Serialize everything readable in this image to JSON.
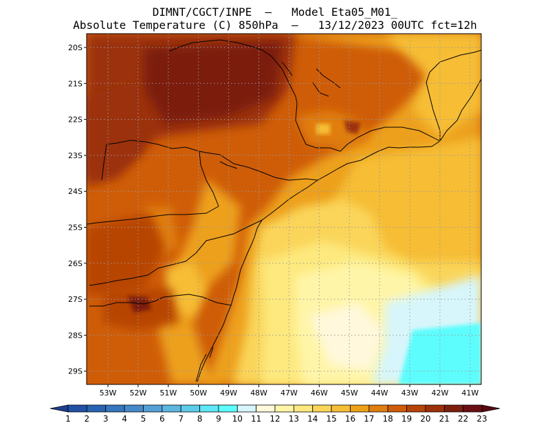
{
  "title": {
    "line1": "DIMNT/CGCT/INPE  —   Model Eta05_M01_",
    "line2": "Absolute Temperature (C) 850hPa  —   13/12/2023 00UTC fct=12h"
  },
  "map": {
    "lat_ticks": [
      "20S",
      "21S",
      "22S",
      "23S",
      "24S",
      "25S",
      "26S",
      "27S",
      "28S",
      "29S"
    ],
    "lon_ticks": [
      "53W",
      "52W",
      "51W",
      "50W",
      "49W",
      "48W",
      "47W",
      "46W",
      "45W",
      "44W",
      "43W",
      "42W",
      "41W"
    ],
    "region": "Southeastern and Southern Brazil with adjacent Atlantic Ocean"
  },
  "colorbar": {
    "levels": [
      "1",
      "2",
      "3",
      "4",
      "5",
      "6",
      "7",
      "8",
      "9",
      "10",
      "11",
      "12",
      "13",
      "14",
      "15",
      "16",
      "17",
      "18",
      "19",
      "20",
      "21",
      "22",
      "23"
    ],
    "colors": [
      "#1f3f8f",
      "#2251a3",
      "#2a63b3",
      "#3676bf",
      "#4689c9",
      "#54a0d6",
      "#5cb6df",
      "#5ccbea",
      "#5fe7f5",
      "#5dfdfd",
      "#d7f6fb",
      "#fff8dc",
      "#fff5a8",
      "#fde97e",
      "#fad55a",
      "#f6bd36",
      "#eda01a",
      "#e07e0e",
      "#cf5d08",
      "#b74406",
      "#9b3109",
      "#7c1e10",
      "#6a1015",
      "#5a0a10"
    ]
  }
}
